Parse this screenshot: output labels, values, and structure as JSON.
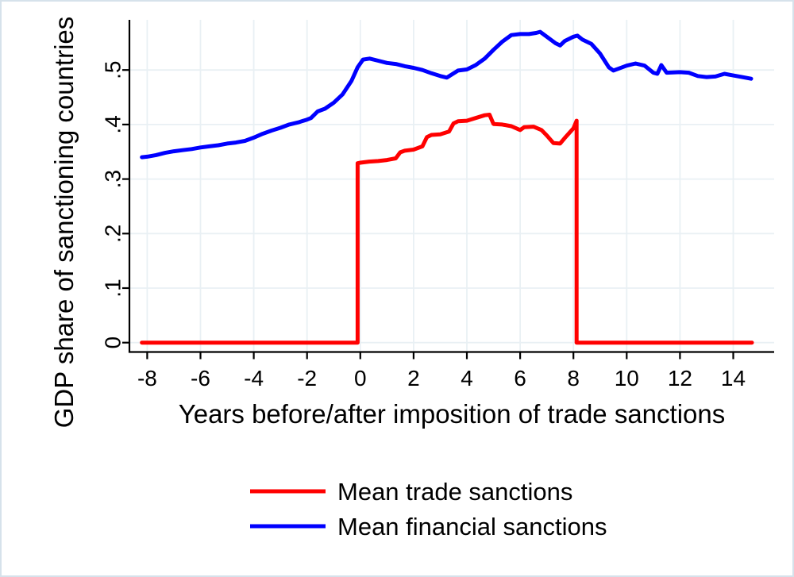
{
  "figure": {
    "background": "#ffffff",
    "border_color": "#d6e2eb"
  },
  "chart_data": {
    "type": "line",
    "title": "",
    "xlabel": "Years before/after imposition of trade sanctions",
    "ylabel": "GDP share of sanctioning countries",
    "xlim": [
      -8.67,
      15.5
    ],
    "ylim": [
      -0.017,
      0.592
    ],
    "x_ticks": [
      -8,
      -6,
      -4,
      -2,
      0,
      2,
      4,
      6,
      8,
      10,
      12,
      14
    ],
    "x_tick_labels": [
      "-8",
      "-6",
      "-4",
      "-2",
      "0",
      "2",
      "4",
      "6",
      "8",
      "10",
      "12",
      "14"
    ],
    "y_ticks": [
      0,
      0.1,
      0.2,
      0.3,
      0.4,
      0.5
    ],
    "y_tick_labels": [
      "0",
      ".1",
      ".2",
      ".3",
      ".4",
      ".5"
    ],
    "grid": true,
    "grid_color": "#e9f0f4",
    "axis_color": "#000000",
    "legend": {
      "position": "bottom",
      "entries": [
        {
          "label": "Mean trade sanctions",
          "color": "#ff0000"
        },
        {
          "label": "Mean financial sanctions",
          "color": "#0000ff"
        }
      ]
    },
    "series": [
      {
        "name": "Mean trade sanctions",
        "color": "#ff0000",
        "points": [
          [
            -8.2,
            0
          ],
          [
            -0.1,
            0
          ],
          [
            -0.1,
            0.329
          ],
          [
            0,
            0.33
          ],
          [
            0.33,
            0.332
          ],
          [
            0.67,
            0.333
          ],
          [
            1,
            0.335
          ],
          [
            1.33,
            0.338
          ],
          [
            1.5,
            0.349
          ],
          [
            1.67,
            0.352
          ],
          [
            2,
            0.354
          ],
          [
            2.33,
            0.36
          ],
          [
            2.5,
            0.377
          ],
          [
            2.67,
            0.381
          ],
          [
            3,
            0.382
          ],
          [
            3.33,
            0.387
          ],
          [
            3.5,
            0.402
          ],
          [
            3.67,
            0.406
          ],
          [
            4,
            0.407
          ],
          [
            4.33,
            0.412
          ],
          [
            4.67,
            0.417
          ],
          [
            4.85,
            0.418
          ],
          [
            5,
            0.401
          ],
          [
            5.33,
            0.4
          ],
          [
            5.67,
            0.397
          ],
          [
            6,
            0.39
          ],
          [
            6.15,
            0.395
          ],
          [
            6.5,
            0.396
          ],
          [
            6.8,
            0.39
          ],
          [
            7,
            0.38
          ],
          [
            7.25,
            0.366
          ],
          [
            7.5,
            0.365
          ],
          [
            7.67,
            0.375
          ],
          [
            8,
            0.393
          ],
          [
            8.12,
            0.407
          ],
          [
            8.12,
            0
          ],
          [
            14.7,
            0
          ]
        ]
      },
      {
        "name": "Mean financial sanctions",
        "color": "#0000ff",
        "points": [
          [
            -8.2,
            0.34
          ],
          [
            -8,
            0.341
          ],
          [
            -7.67,
            0.344
          ],
          [
            -7.33,
            0.348
          ],
          [
            -7,
            0.351
          ],
          [
            -6.67,
            0.353
          ],
          [
            -6.33,
            0.355
          ],
          [
            -6,
            0.358
          ],
          [
            -5.67,
            0.36
          ],
          [
            -5.33,
            0.362
          ],
          [
            -5,
            0.365
          ],
          [
            -4.67,
            0.367
          ],
          [
            -4.33,
            0.37
          ],
          [
            -4,
            0.376
          ],
          [
            -3.67,
            0.383
          ],
          [
            -3.33,
            0.389
          ],
          [
            -3,
            0.394
          ],
          [
            -2.67,
            0.4
          ],
          [
            -2.33,
            0.404
          ],
          [
            -2,
            0.409
          ],
          [
            -1.85,
            0.412
          ],
          [
            -1.6,
            0.424
          ],
          [
            -1.33,
            0.429
          ],
          [
            -1,
            0.44
          ],
          [
            -0.67,
            0.455
          ],
          [
            -0.33,
            0.48
          ],
          [
            -0.1,
            0.505
          ],
          [
            0.1,
            0.519
          ],
          [
            0.35,
            0.521
          ],
          [
            0.67,
            0.517
          ],
          [
            1,
            0.513
          ],
          [
            1.33,
            0.511
          ],
          [
            1.67,
            0.507
          ],
          [
            2,
            0.504
          ],
          [
            2.33,
            0.5
          ],
          [
            2.67,
            0.494
          ],
          [
            3,
            0.489
          ],
          [
            3.25,
            0.486
          ],
          [
            3.67,
            0.499
          ],
          [
            4,
            0.501
          ],
          [
            4.33,
            0.509
          ],
          [
            4.67,
            0.521
          ],
          [
            5,
            0.537
          ],
          [
            5.33,
            0.552
          ],
          [
            5.67,
            0.564
          ],
          [
            6,
            0.566
          ],
          [
            6.33,
            0.566
          ],
          [
            6.6,
            0.568
          ],
          [
            6.75,
            0.57
          ],
          [
            7,
            0.561
          ],
          [
            7.33,
            0.549
          ],
          [
            7.5,
            0.545
          ],
          [
            7.67,
            0.553
          ],
          [
            8,
            0.561
          ],
          [
            8.15,
            0.563
          ],
          [
            8.33,
            0.556
          ],
          [
            8.67,
            0.548
          ],
          [
            9,
            0.53
          ],
          [
            9.33,
            0.505
          ],
          [
            9.5,
            0.499
          ],
          [
            9.67,
            0.502
          ],
          [
            10,
            0.508
          ],
          [
            10.33,
            0.512
          ],
          [
            10.67,
            0.508
          ],
          [
            11,
            0.495
          ],
          [
            11.15,
            0.493
          ],
          [
            11.3,
            0.509
          ],
          [
            11.5,
            0.495
          ],
          [
            12,
            0.496
          ],
          [
            12.33,
            0.495
          ],
          [
            12.67,
            0.489
          ],
          [
            13,
            0.487
          ],
          [
            13.33,
            0.488
          ],
          [
            13.67,
            0.493
          ],
          [
            14,
            0.49
          ],
          [
            14.33,
            0.487
          ],
          [
            14.67,
            0.484
          ]
        ]
      }
    ]
  }
}
